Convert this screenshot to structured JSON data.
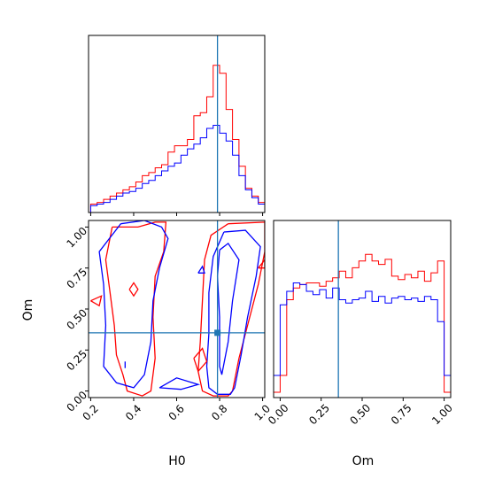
{
  "chart_data": {
    "type": "corner",
    "params": [
      "H0",
      "Om"
    ],
    "truth": {
      "H0": 0.79,
      "Om": 0.355
    },
    "colors": {
      "series_a": "#ff0000",
      "series_b": "#0000ff",
      "truth": "#1f77b4"
    },
    "panels": {
      "h0_hist": {
        "type": "histogram",
        "xlim": [
          0.19,
          1.01
        ],
        "bin_edges": [
          0.2,
          0.23,
          0.26,
          0.29,
          0.32,
          0.35,
          0.38,
          0.41,
          0.44,
          0.47,
          0.5,
          0.53,
          0.56,
          0.59,
          0.62,
          0.65,
          0.68,
          0.71,
          0.74,
          0.77,
          0.8,
          0.83,
          0.86,
          0.89,
          0.92,
          0.95,
          0.98,
          1.01
        ],
        "series": [
          {
            "values": [
              0.02,
              0.03,
              0.05,
              0.07,
              0.09,
              0.11,
              0.13,
              0.16,
              0.2,
              0.22,
              0.25,
              0.27,
              0.35,
              0.39,
              0.39,
              0.43,
              0.58,
              0.6,
              0.7,
              0.9,
              0.85,
              0.62,
              0.43,
              0.26,
              0.12,
              0.07,
              0.03
            ]
          },
          {
            "values": [
              0.01,
              0.02,
              0.03,
              0.05,
              0.07,
              0.09,
              0.1,
              0.12,
              0.15,
              0.17,
              0.2,
              0.23,
              0.26,
              0.28,
              0.33,
              0.37,
              0.4,
              0.44,
              0.5,
              0.52,
              0.47,
              0.42,
              0.33,
              0.2,
              0.11,
              0.06,
              0.02
            ]
          }
        ]
      },
      "om_hist": {
        "type": "histogram",
        "xlim": [
          -0.04,
          1.04
        ],
        "bin_edges": [
          -0.04,
          0.0,
          0.04,
          0.08,
          0.12,
          0.16,
          0.2,
          0.24,
          0.28,
          0.32,
          0.36,
          0.4,
          0.44,
          0.48,
          0.52,
          0.56,
          0.6,
          0.64,
          0.68,
          0.72,
          0.76,
          0.8,
          0.84,
          0.88,
          0.92,
          0.96,
          1.0,
          1.04
        ],
        "series": [
          {
            "values": [
              0.0,
              0.1,
              0.55,
              0.62,
              0.64,
              0.65,
              0.65,
              0.63,
              0.66,
              0.68,
              0.72,
              0.68,
              0.74,
              0.78,
              0.82,
              0.78,
              0.76,
              0.79,
              0.69,
              0.67,
              0.7,
              0.68,
              0.72,
              0.66,
              0.71,
              0.78,
              0.0
            ]
          },
          {
            "values": [
              0.1,
              0.52,
              0.6,
              0.65,
              0.64,
              0.6,
              0.58,
              0.61,
              0.56,
              0.62,
              0.55,
              0.53,
              0.55,
              0.56,
              0.6,
              0.54,
              0.57,
              0.53,
              0.56,
              0.57,
              0.55,
              0.56,
              0.54,
              0.57,
              0.55,
              0.42,
              0.1
            ]
          }
        ]
      },
      "joint": {
        "type": "contour",
        "xlim": [
          0.19,
          1.01
        ],
        "ylim": [
          -0.04,
          1.04
        ],
        "contours": [
          {
            "series": 0,
            "points": [
              [
                0.84,
                1.02
              ],
              [
                1.01,
                1.03
              ],
              [
                1.01,
                0.85
              ],
              [
                0.98,
                0.65
              ],
              [
                0.93,
                0.4
              ],
              [
                0.89,
                0.2
              ],
              [
                0.86,
                0.0
              ],
              [
                0.84,
                -0.03
              ],
              [
                0.77,
                -0.03
              ],
              [
                0.72,
                0.0
              ],
              [
                0.7,
                0.12
              ],
              [
                0.71,
                0.3
              ],
              [
                0.72,
                0.55
              ],
              [
                0.73,
                0.8
              ],
              [
                0.76,
                0.95
              ],
              [
                0.84,
                1.02
              ]
            ]
          },
          {
            "series": 1,
            "points": [
              [
                0.82,
                0.97
              ],
              [
                0.92,
                0.98
              ],
              [
                0.99,
                0.88
              ],
              [
                0.97,
                0.7
              ],
              [
                0.93,
                0.45
              ],
              [
                0.9,
                0.22
              ],
              [
                0.87,
                0.02
              ],
              [
                0.85,
                -0.02
              ],
              [
                0.79,
                -0.02
              ],
              [
                0.75,
                0.02
              ],
              [
                0.74,
                0.15
              ],
              [
                0.75,
                0.35
              ],
              [
                0.75,
                0.6
              ],
              [
                0.77,
                0.82
              ],
              [
                0.82,
                0.97
              ]
            ]
          },
          {
            "series": 1,
            "points": [
              [
                0.8,
                0.86
              ],
              [
                0.84,
                0.9
              ],
              [
                0.89,
                0.8
              ],
              [
                0.86,
                0.55
              ],
              [
                0.84,
                0.3
              ],
              [
                0.81,
                0.1
              ],
              [
                0.8,
                0.15
              ],
              [
                0.8,
                0.45
              ],
              [
                0.79,
                0.7
              ],
              [
                0.8,
                0.86
              ]
            ]
          },
          {
            "series": 0,
            "points": [
              [
                0.3,
                1.0
              ],
              [
                0.42,
                1.0
              ],
              [
                0.5,
                1.03
              ],
              [
                0.55,
                1.03
              ],
              [
                0.54,
                0.85
              ],
              [
                0.5,
                0.7
              ],
              [
                0.49,
                0.45
              ],
              [
                0.5,
                0.2
              ],
              [
                0.48,
                0.0
              ],
              [
                0.44,
                -0.03
              ],
              [
                0.37,
                0.0
              ],
              [
                0.35,
                0.1
              ],
              [
                0.32,
                0.22
              ],
              [
                0.31,
                0.4
              ],
              [
                0.29,
                0.6
              ],
              [
                0.27,
                0.8
              ],
              [
                0.3,
                1.0
              ]
            ]
          },
          {
            "series": 1,
            "points": [
              [
                0.34,
                1.02
              ],
              [
                0.45,
                1.04
              ],
              [
                0.53,
                1.0
              ],
              [
                0.56,
                0.93
              ],
              [
                0.52,
                0.75
              ],
              [
                0.49,
                0.55
              ],
              [
                0.48,
                0.3
              ],
              [
                0.45,
                0.1
              ],
              [
                0.4,
                0.02
              ],
              [
                0.32,
                0.05
              ],
              [
                0.26,
                0.15
              ],
              [
                0.27,
                0.4
              ],
              [
                0.26,
                0.65
              ],
              [
                0.24,
                0.85
              ],
              [
                0.34,
                1.02
              ]
            ]
          },
          {
            "series": 1,
            "points": [
              [
                0.52,
                0.02
              ],
              [
                0.6,
                0.08
              ],
              [
                0.7,
                0.04
              ],
              [
                0.62,
                0.01
              ],
              [
                0.52,
                0.02
              ]
            ]
          },
          {
            "series": 0,
            "points": [
              [
                0.68,
                0.2
              ],
              [
                0.72,
                0.26
              ],
              [
                0.74,
                0.18
              ],
              [
                0.7,
                0.12
              ],
              [
                0.68,
                0.2
              ]
            ]
          },
          {
            "series": 0,
            "points": [
              [
                0.2,
                0.55
              ],
              [
                0.25,
                0.58
              ],
              [
                0.24,
                0.52
              ],
              [
                0.2,
                0.55
              ]
            ]
          },
          {
            "series": 0,
            "points": [
              [
                0.38,
                0.62
              ],
              [
                0.4,
                0.66
              ],
              [
                0.42,
                0.62
              ],
              [
                0.4,
                0.58
              ],
              [
                0.38,
                0.62
              ]
            ]
          },
          {
            "series": 1,
            "points": [
              [
                0.7,
                0.72
              ],
              [
                0.72,
                0.76
              ],
              [
                0.73,
                0.72
              ],
              [
                0.7,
                0.72
              ]
            ]
          },
          {
            "series": 1,
            "points": [
              [
                0.36,
                0.14
              ],
              [
                0.36,
                0.18
              ]
            ]
          },
          {
            "series": 0,
            "points": [
              [
                0.98,
                0.75
              ],
              [
                1.01,
                0.8
              ],
              [
                1.01,
                0.75
              ],
              [
                0.98,
                0.75
              ]
            ]
          }
        ]
      }
    },
    "h0_ticks": [
      "0.2",
      "0.4",
      "0.6",
      "0.8",
      "1.0"
    ],
    "om_ticks": [
      "0.00",
      "0.25",
      "0.50",
      "0.75",
      "1.00"
    ],
    "xlabel_joint": "H0",
    "ylabel_joint": "Om",
    "xlabel_om": "Om"
  }
}
